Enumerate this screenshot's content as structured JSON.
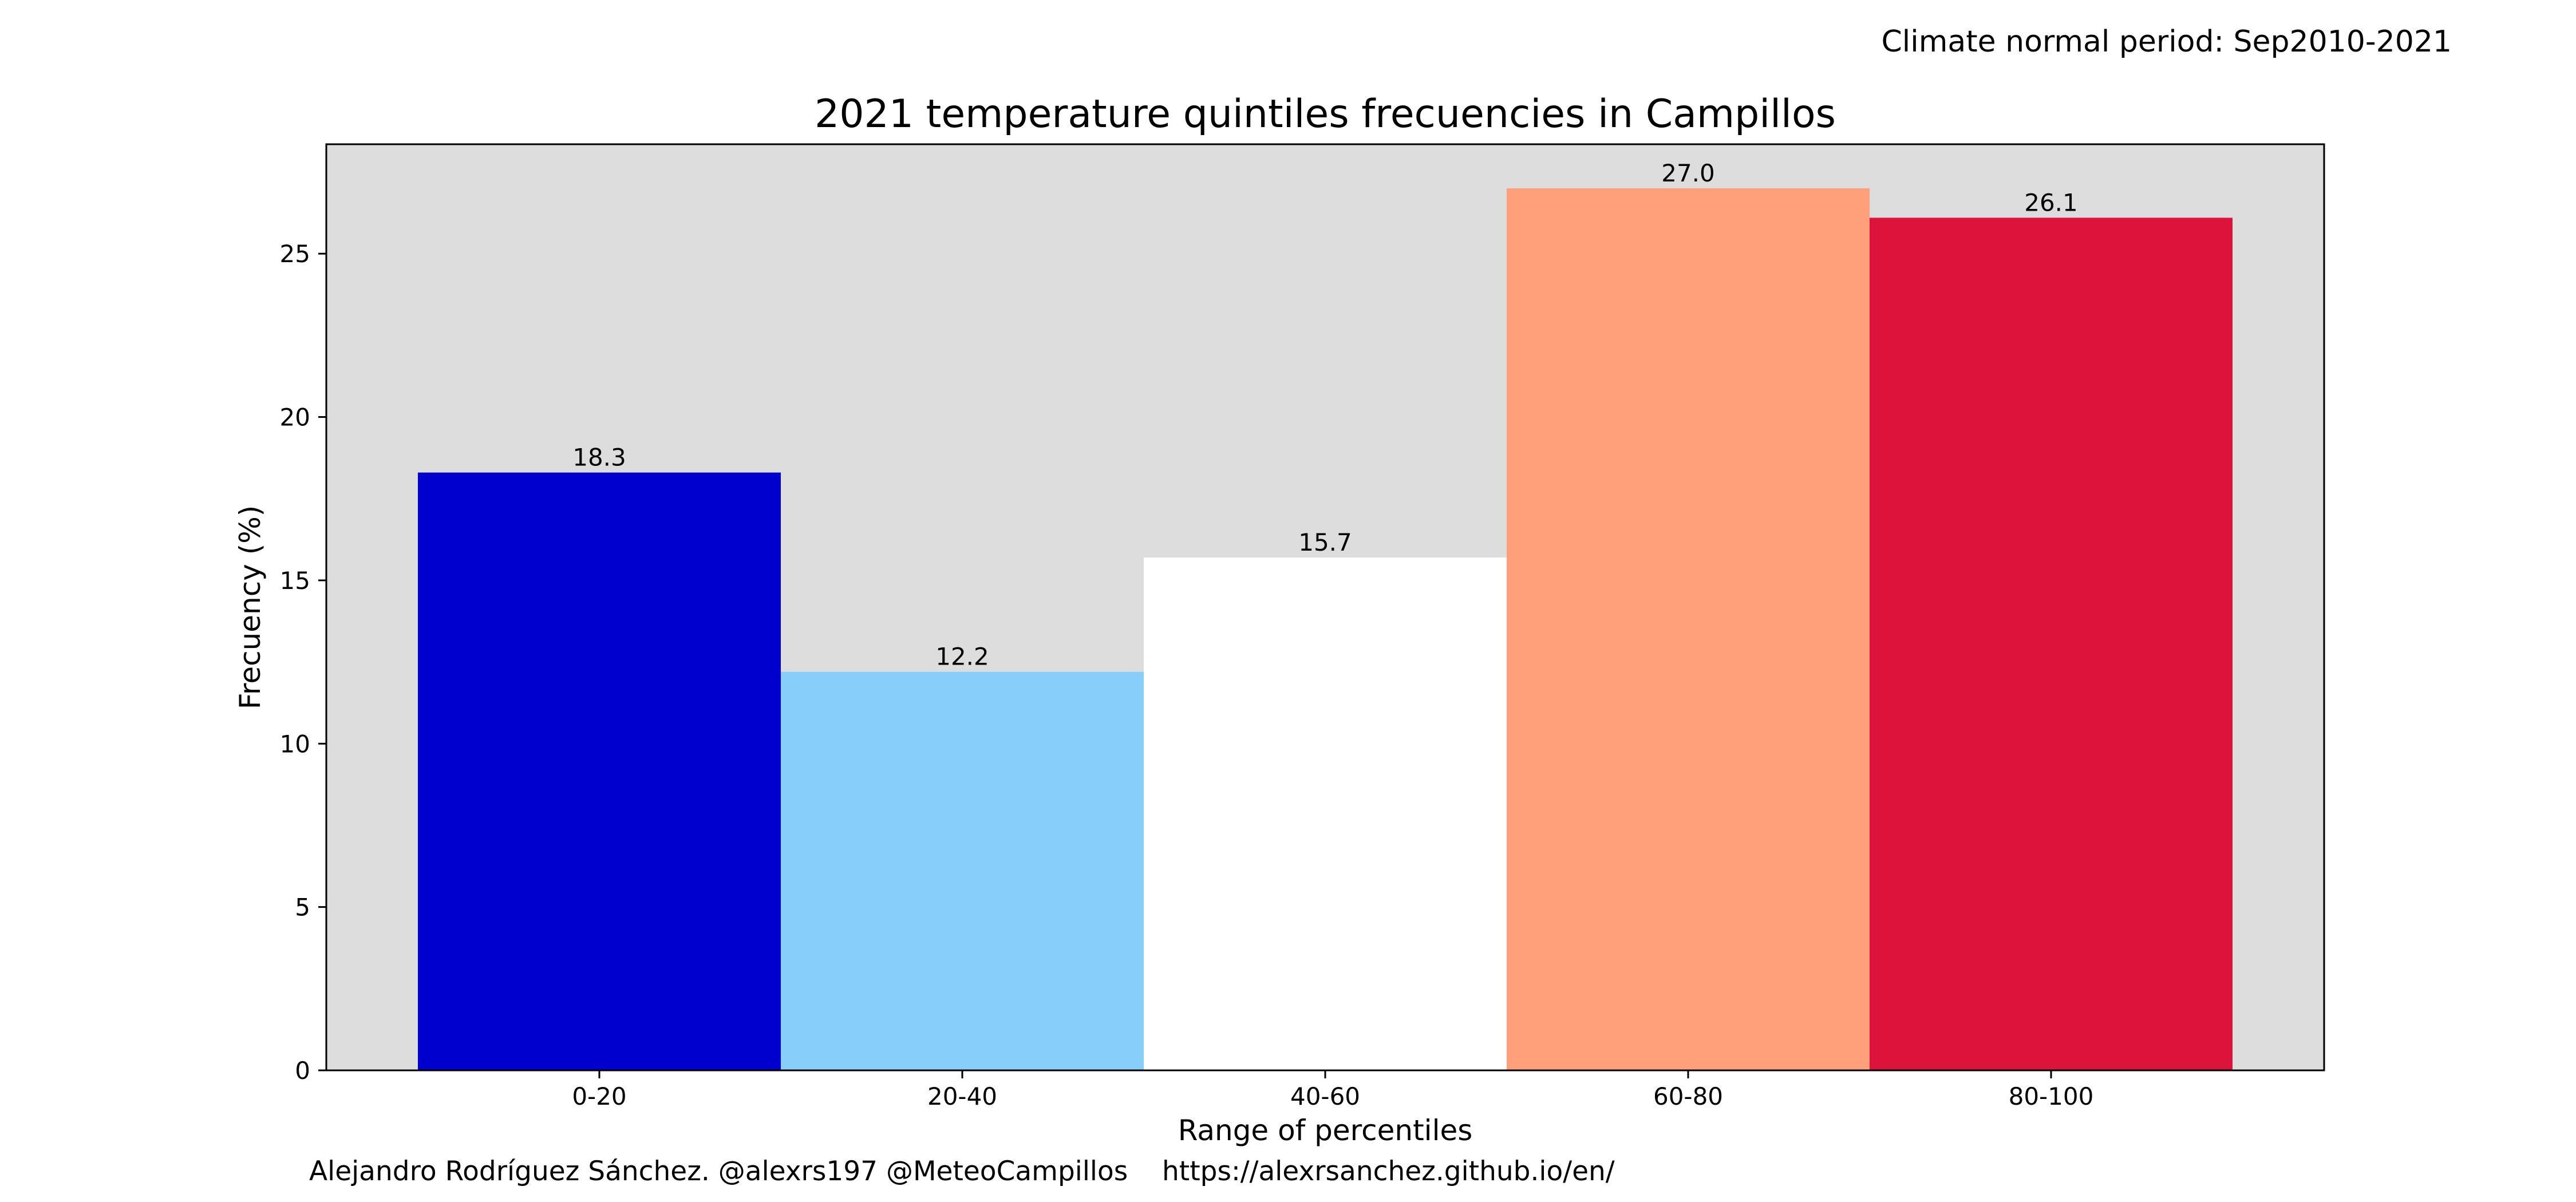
{
  "header": {
    "period_note": "Climate normal period: Sep2010-2021"
  },
  "footer": {
    "credit": "Alejandro Rodríguez Sánchez. @alexrs197 @MeteoCampillos    https://alexrsanchez.github.io/en/"
  },
  "chart_data": {
    "type": "bar",
    "title": "2021 temperature quintiles frecuencies in Campillos",
    "xlabel": "Range of percentiles",
    "ylabel": "Frecuency (%)",
    "categories": [
      "0-20",
      "20-40",
      "40-60",
      "60-80",
      "80-100"
    ],
    "values": [
      18.3,
      12.2,
      15.7,
      27.0,
      26.1
    ],
    "value_labels": [
      "18.3",
      "12.2",
      "15.7",
      "27.0",
      "26.1"
    ],
    "bar_colors": [
      "#0000cd",
      "#87cefa",
      "#ffffff",
      "#ffa07a",
      "#dc143c"
    ],
    "plot_background": "#dddddd",
    "ylim": [
      0,
      28.35
    ],
    "yticks": [
      0,
      5,
      10,
      15,
      20,
      25
    ],
    "ytick_labels": [
      "0",
      "5",
      "10",
      "15",
      "20",
      "25"
    ],
    "grid": false,
    "legend": "none"
  }
}
